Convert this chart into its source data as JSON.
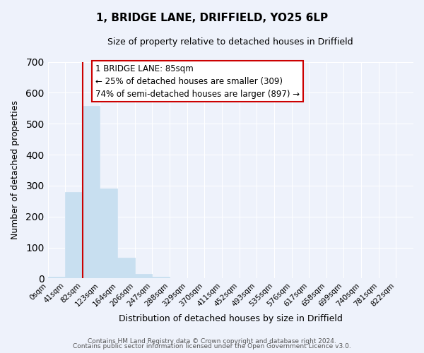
{
  "title": "1, BRIDGE LANE, DRIFFIELD, YO25 6LP",
  "subtitle": "Size of property relative to detached houses in Driffield",
  "xlabel": "Distribution of detached houses by size in Driffield",
  "ylabel": "Number of detached properties",
  "bar_labels": [
    "0sqm",
    "41sqm",
    "82sqm",
    "123sqm",
    "164sqm",
    "206sqm",
    "247sqm",
    "288sqm",
    "329sqm",
    "370sqm",
    "411sqm",
    "452sqm",
    "493sqm",
    "535sqm",
    "576sqm",
    "617sqm",
    "658sqm",
    "699sqm",
    "740sqm",
    "781sqm",
    "822sqm"
  ],
  "bar_values": [
    5,
    280,
    558,
    290,
    68,
    14,
    5,
    0,
    0,
    0,
    0,
    0,
    0,
    0,
    0,
    0,
    0,
    0,
    0,
    0,
    0
  ],
  "bar_color": "#c8dff0",
  "bar_edge_color": "#c8dff0",
  "property_line_x": 82,
  "property_line_color": "#cc0000",
  "ylim": [
    0,
    700
  ],
  "yticks": [
    0,
    100,
    200,
    300,
    400,
    500,
    600,
    700
  ],
  "annotation_title": "1 BRIDGE LANE: 85sqm",
  "annotation_line1": "← 25% of detached houses are smaller (309)",
  "annotation_line2": "74% of semi-detached houses are larger (897) →",
  "annotation_box_color": "#ffffff",
  "annotation_box_edge_color": "#cc0000",
  "footer1": "Contains HM Land Registry data © Crown copyright and database right 2024.",
  "footer2": "Contains public sector information licensed under the Open Government Licence v3.0.",
  "bg_color": "#eef2fb",
  "plot_bg_color": "#eef2fb",
  "grid_color": "#ffffff",
  "bin_width": 41
}
